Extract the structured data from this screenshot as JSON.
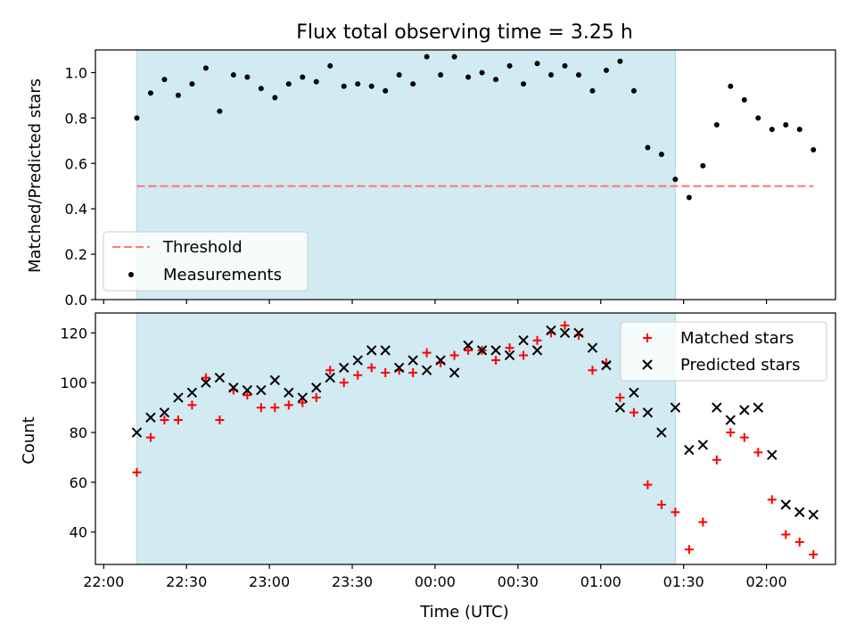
{
  "chart_data": [
    {
      "type": "scatter",
      "title": "Flux total observing time = 3.25 h",
      "xlabel": "",
      "ylabel": "Matched/Predicted stars",
      "ylim": [
        0,
        1.1
      ],
      "yticks": [
        0.0,
        0.2,
        0.4,
        0.6,
        0.8,
        1.0
      ],
      "ytick_labels": [
        "0.0",
        "0.2",
        "0.4",
        "0.6",
        "0.8",
        "1.0"
      ],
      "xlim": [
        "21:57",
        "02:25"
      ],
      "grid": false,
      "legend_position": "lower-left",
      "observing_window": {
        "start": "22:12",
        "end": "01:27",
        "color": "#add8e6"
      },
      "threshold": {
        "name": "Threshold",
        "y": 0.5,
        "x_start": "22:12",
        "x_end": "02:17",
        "color": "#ff7f7f",
        "style": "dashed"
      },
      "series": [
        {
          "name": "Measurements",
          "color": "#000000",
          "marker": "dot",
          "x": [
            "22:12",
            "22:17",
            "22:22",
            "22:27",
            "22:32",
            "22:37",
            "22:42",
            "22:47",
            "22:52",
            "22:57",
            "23:02",
            "23:07",
            "23:12",
            "23:17",
            "23:22",
            "23:27",
            "23:32",
            "23:37",
            "23:42",
            "23:47",
            "23:52",
            "23:57",
            "00:02",
            "00:07",
            "00:12",
            "00:17",
            "00:22",
            "00:27",
            "00:32",
            "00:37",
            "00:42",
            "00:47",
            "00:52",
            "00:57",
            "01:02",
            "01:07",
            "01:12",
            "01:17",
            "01:22",
            "01:27",
            "01:32",
            "01:37",
            "01:42",
            "01:47",
            "01:52",
            "01:57",
            "02:02",
            "02:07",
            "02:12",
            "02:17"
          ],
          "y": [
            0.8,
            0.91,
            0.97,
            0.9,
            0.95,
            1.02,
            0.83,
            0.99,
            0.98,
            0.93,
            0.89,
            0.95,
            0.98,
            0.96,
            1.03,
            0.94,
            0.95,
            0.94,
            0.92,
            0.99,
            0.95,
            1.07,
            0.99,
            1.07,
            0.98,
            1.0,
            0.97,
            1.03,
            0.95,
            1.04,
            0.99,
            1.03,
            0.99,
            0.92,
            1.01,
            1.05,
            0.92,
            0.67,
            0.64,
            0.53,
            0.45,
            0.59,
            0.77,
            0.94,
            0.88,
            0.8,
            0.75,
            0.77,
            0.75,
            0.66
          ]
        }
      ]
    },
    {
      "type": "scatter",
      "title": "",
      "xlabel": "Time (UTC)",
      "ylabel": "Count",
      "ylim": [
        27,
        128
      ],
      "yticks": [
        40,
        60,
        80,
        100,
        120
      ],
      "xlim": [
        "21:57",
        "02:25"
      ],
      "xticks": [
        "22:00",
        "22:30",
        "23:00",
        "23:30",
        "00:00",
        "00:30",
        "01:00",
        "01:30",
        "02:00"
      ],
      "grid": false,
      "legend_position": "upper-right",
      "observing_window": {
        "start": "22:12",
        "end": "01:27",
        "color": "#add8e6"
      },
      "series": [
        {
          "name": "Matched stars",
          "color": "#ff0000",
          "marker": "plus",
          "x": [
            "22:12",
            "22:17",
            "22:22",
            "22:27",
            "22:32",
            "22:37",
            "22:42",
            "22:47",
            "22:52",
            "22:57",
            "23:02",
            "23:07",
            "23:12",
            "23:17",
            "23:22",
            "23:27",
            "23:32",
            "23:37",
            "23:42",
            "23:47",
            "23:52",
            "23:57",
            "00:02",
            "00:07",
            "00:12",
            "00:17",
            "00:22",
            "00:27",
            "00:32",
            "00:37",
            "00:42",
            "00:47",
            "00:52",
            "00:57",
            "01:02",
            "01:07",
            "01:12",
            "01:17",
            "01:22",
            "01:27",
            "01:32",
            "01:37",
            "01:42",
            "01:47",
            "01:52",
            "01:57",
            "02:02",
            "02:07",
            "02:12",
            "02:17"
          ],
          "y": [
            64,
            78,
            85,
            85,
            91,
            102,
            85,
            97,
            95,
            90,
            90,
            91,
            92,
            94,
            105,
            100,
            103,
            106,
            104,
            105,
            104,
            112,
            108,
            111,
            113,
            113,
            109,
            114,
            111,
            117,
            120,
            123,
            119,
            105,
            108,
            94,
            88,
            59,
            51,
            48,
            33,
            44,
            69,
            80,
            78,
            72,
            53,
            39,
            36,
            31
          ]
        },
        {
          "name": "Predicted stars",
          "color": "#000000",
          "marker": "x",
          "x": [
            "22:12",
            "22:17",
            "22:22",
            "22:27",
            "22:32",
            "22:37",
            "22:42",
            "22:47",
            "22:52",
            "22:57",
            "23:02",
            "23:07",
            "23:12",
            "23:17",
            "23:22",
            "23:27",
            "23:32",
            "23:37",
            "23:42",
            "23:47",
            "23:52",
            "23:57",
            "00:02",
            "00:07",
            "00:12",
            "00:17",
            "00:22",
            "00:27",
            "00:32",
            "00:37",
            "00:42",
            "00:47",
            "00:52",
            "00:57",
            "01:02",
            "01:07",
            "01:12",
            "01:17",
            "01:22",
            "01:27",
            "01:32",
            "01:37",
            "01:42",
            "01:47",
            "01:52",
            "01:57",
            "02:02",
            "02:07",
            "02:12",
            "02:17"
          ],
          "y": [
            80,
            86,
            88,
            94,
            96,
            100,
            102,
            98,
            97,
            97,
            101,
            96,
            94,
            98,
            102,
            106,
            109,
            113,
            113,
            106,
            109,
            105,
            109,
            104,
            115,
            113,
            113,
            111,
            117,
            113,
            121,
            120,
            120,
            114,
            107,
            90,
            96,
            88,
            80,
            90,
            73,
            75,
            90,
            85,
            89,
            90,
            71,
            51,
            48,
            47
          ]
        }
      ]
    }
  ]
}
